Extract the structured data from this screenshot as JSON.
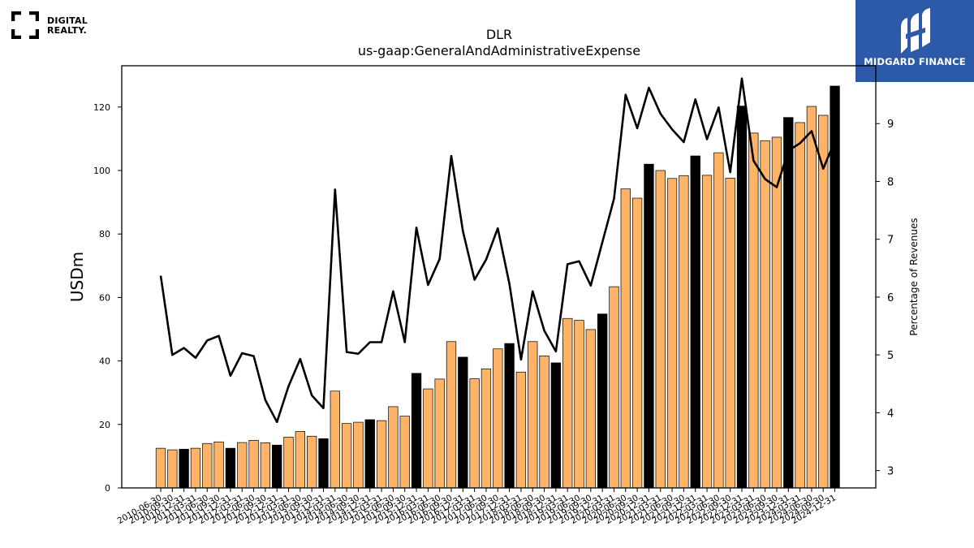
{
  "logos": {
    "left": {
      "line1": "DIGITAL",
      "line2": "REALTY.",
      "icon": "digital-realty-bracket-icon"
    },
    "right": {
      "text": "MIDGARD FINANCE",
      "icon": "midgard-mark-icon",
      "bg": "#2d5aa8"
    }
  },
  "chart_data": {
    "type": "bar",
    "title": "DLR",
    "subtitle": "us-gaap:GeneralAndAdministrativeExpense",
    "ylabel": "USDm",
    "y2label": "Percentage of Revenues",
    "ylim": [
      0,
      133
    ],
    "y2lim": [
      2.7,
      10.0
    ],
    "yticks": [
      0,
      20,
      40,
      60,
      80,
      100,
      120
    ],
    "y2ticks": [
      3,
      4,
      5,
      6,
      7,
      8,
      9
    ],
    "colors": {
      "quarterly": "#ffb366",
      "annual": "#000000",
      "line": "#000000"
    },
    "categories": [
      "2010-06-30",
      "2010-09-30",
      "2010-12-31",
      "2011-03-31",
      "2011-06-30",
      "2011-09-30",
      "2011-12-31",
      "2012-03-31",
      "2012-06-30",
      "2012-09-30",
      "2012-12-31",
      "2013-03-31",
      "2013-06-30",
      "2013-09-30",
      "2013-12-31",
      "2014-03-31",
      "2014-06-30",
      "2014-09-30",
      "2014-12-31",
      "2015-03-31",
      "2015-06-30",
      "2015-09-30",
      "2015-12-31",
      "2016-03-31",
      "2016-06-30",
      "2016-09-30",
      "2016-12-31",
      "2017-03-31",
      "2017-06-30",
      "2017-09-30",
      "2017-12-31",
      "2018-03-31",
      "2018-06-30",
      "2018-09-30",
      "2018-12-31",
      "2019-03-31",
      "2019-06-30",
      "2019-09-30",
      "2019-12-31",
      "2020-03-31",
      "2020-06-30",
      "2020-09-30",
      "2020-12-31",
      "2021-03-31",
      "2021-06-30",
      "2021-09-30",
      "2021-12-31",
      "2022-03-31",
      "2022-06-30",
      "2022-09-30",
      "2022-12-31",
      "2023-03-31",
      "2023-06-30",
      "2023-09-30",
      "2023-12-31",
      "2024-03-31",
      "2024-06-30",
      "2024-09-30",
      "2024-12-31"
    ],
    "values": [
      12.5,
      12.0,
      12.2,
      12.5,
      14.0,
      14.5,
      12.5,
      14.3,
      15.0,
      14.2,
      13.5,
      16.0,
      17.8,
      16.3,
      15.5,
      30.5,
      20.3,
      20.7,
      21.5,
      21.2,
      25.6,
      22.6,
      36.1,
      31.2,
      34.3,
      46.1,
      41.2,
      34.4,
      37.5,
      43.8,
      45.5,
      36.5,
      46.1,
      41.6,
      39.4,
      53.4,
      52.8,
      49.9,
      54.8,
      63.4,
      94.2,
      91.3,
      102.0,
      100.0,
      97.5,
      98.4,
      104.6,
      98.5,
      105.6,
      97.6,
      120.3,
      111.8,
      109.4,
      110.5,
      116.7,
      115.1,
      120.2,
      117.4,
      126.6
    ],
    "annual": [
      false,
      false,
      true,
      false,
      false,
      false,
      true,
      false,
      false,
      false,
      true,
      false,
      false,
      false,
      true,
      false,
      false,
      false,
      true,
      false,
      false,
      false,
      true,
      false,
      false,
      false,
      true,
      false,
      false,
      false,
      true,
      false,
      false,
      false,
      true,
      false,
      false,
      false,
      true,
      false,
      false,
      false,
      true,
      false,
      false,
      false,
      true,
      false,
      false,
      false,
      true,
      false,
      false,
      false,
      true,
      false,
      false,
      false,
      true
    ],
    "line_series": {
      "name": "Percentage of Revenues",
      "values": [
        6.37,
        5.0,
        5.12,
        4.95,
        5.25,
        5.33,
        4.64,
        5.03,
        4.98,
        4.22,
        3.84,
        4.46,
        4.93,
        4.3,
        4.08,
        7.86,
        5.05,
        5.02,
        5.22,
        5.22,
        6.1,
        5.22,
        7.2,
        6.21,
        6.66,
        8.44,
        7.14,
        6.3,
        6.65,
        7.19,
        6.23,
        4.92,
        6.1,
        5.42,
        5.06,
        6.57,
        6.62,
        6.2,
        6.95,
        7.7,
        9.5,
        8.92,
        9.62,
        9.17,
        8.9,
        8.68,
        9.42,
        8.73,
        9.28,
        8.16,
        9.78,
        8.36,
        8.04,
        7.9,
        8.53,
        8.66,
        8.87,
        8.22,
        8.7
      ]
    }
  }
}
